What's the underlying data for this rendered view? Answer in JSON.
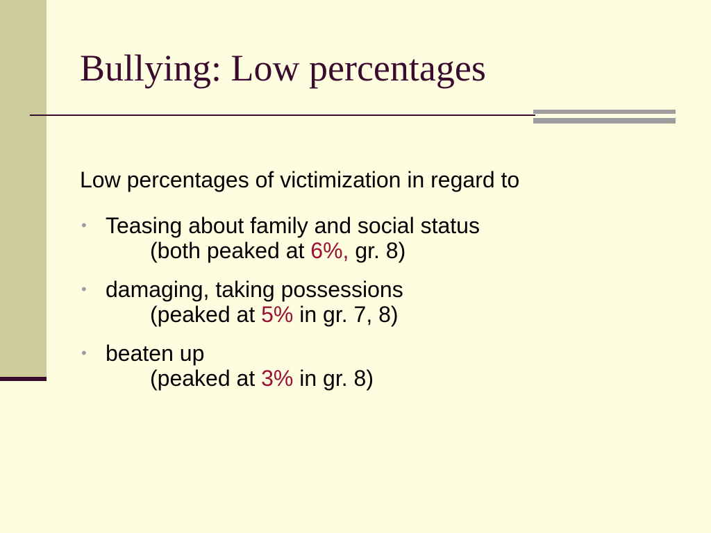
{
  "slide": {
    "title": "Bullying:  Low percentages",
    "intro": "Low percentages of victimization in regard to",
    "bullet_marker": "•",
    "bullets": [
      {
        "main": "Teasing about family and social status",
        "sub_prefix": "(both peaked at ",
        "sub_highlight": "6%,",
        "sub_suffix": " gr. 8)"
      },
      {
        "main": "damaging, taking possessions",
        "sub_prefix": "(peaked at ",
        "sub_highlight": "5%",
        "sub_suffix": " in gr. 7, 8)"
      },
      {
        "main": "beaten up",
        "sub_prefix": "(peaked at ",
        "sub_highlight": "3%",
        "sub_suffix": " in gr. 8)"
      }
    ]
  },
  "colors": {
    "background": "#FFFDE0",
    "left_band": "#CDCB9C",
    "title_text": "#3B0B2F",
    "accent_rule": "#3B0B2F",
    "gray_bar": "#9E9E9E",
    "highlight": "#9A1136"
  }
}
